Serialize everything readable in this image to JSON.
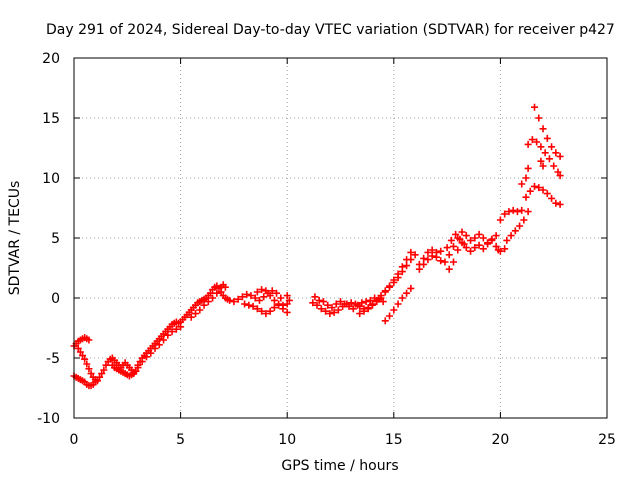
{
  "chart_data": {
    "type": "scatter",
    "title": "Day 291 of 2024, Sidereal Day-to-day VTEC variation (SDTVAR) for receiver p427",
    "xlabel": "GPS time / hours",
    "ylabel": "SDTVAR / TECUs",
    "xlim": [
      0,
      25
    ],
    "ylim": [
      -10,
      20
    ],
    "xticks": [
      0,
      5,
      10,
      15,
      20,
      25
    ],
    "yticks": [
      -10,
      -5,
      0,
      5,
      10,
      15,
      20
    ],
    "grid": true,
    "marker": "+",
    "color": "#ff0000",
    "series": [
      {
        "name": "SDTVAR",
        "points": [
          [
            0.0,
            -4.0
          ],
          [
            0.1,
            -3.8
          ],
          [
            0.2,
            -3.6
          ],
          [
            0.3,
            -3.5
          ],
          [
            0.4,
            -3.4
          ],
          [
            0.5,
            -3.3
          ],
          [
            0.6,
            -3.4
          ],
          [
            0.7,
            -3.5
          ],
          [
            0.0,
            -6.5
          ],
          [
            0.1,
            -6.6
          ],
          [
            0.2,
            -6.7
          ],
          [
            0.3,
            -6.8
          ],
          [
            0.4,
            -6.9
          ],
          [
            0.5,
            -7.0
          ],
          [
            0.6,
            -7.2
          ],
          [
            0.7,
            -7.3
          ],
          [
            0.8,
            -7.3
          ],
          [
            0.9,
            -7.2
          ],
          [
            1.0,
            -7.0
          ],
          [
            0.2,
            -4.2
          ],
          [
            0.3,
            -4.5
          ],
          [
            0.4,
            -4.8
          ],
          [
            0.5,
            -5.1
          ],
          [
            0.6,
            -5.5
          ],
          [
            0.7,
            -5.9
          ],
          [
            0.8,
            -6.3
          ],
          [
            0.9,
            -6.6
          ],
          [
            1.0,
            -6.8
          ],
          [
            1.1,
            -6.9
          ],
          [
            1.2,
            -6.6
          ],
          [
            1.3,
            -6.3
          ],
          [
            1.4,
            -6.0
          ],
          [
            1.5,
            -5.6
          ],
          [
            1.6,
            -5.3
          ],
          [
            1.7,
            -5.1
          ],
          [
            1.8,
            -5.0
          ],
          [
            1.9,
            -5.2
          ],
          [
            2.0,
            -5.4
          ],
          [
            2.1,
            -5.6
          ],
          [
            2.2,
            -5.8
          ],
          [
            2.3,
            -5.6
          ],
          [
            2.4,
            -5.4
          ],
          [
            2.5,
            -5.6
          ],
          [
            2.6,
            -5.8
          ],
          [
            2.7,
            -6.0
          ],
          [
            2.8,
            -6.2
          ],
          [
            2.9,
            -6.1
          ],
          [
            3.0,
            -5.8
          ],
          [
            1.8,
            -5.6
          ],
          [
            1.9,
            -5.8
          ],
          [
            2.0,
            -5.9
          ],
          [
            2.1,
            -6.0
          ],
          [
            2.2,
            -6.1
          ],
          [
            2.3,
            -6.2
          ],
          [
            2.4,
            -6.3
          ],
          [
            2.5,
            -6.4
          ],
          [
            2.6,
            -6.5
          ],
          [
            2.7,
            -6.4
          ],
          [
            2.8,
            -6.3
          ],
          [
            2.9,
            -6.1
          ],
          [
            3.0,
            -5.6
          ],
          [
            3.1,
            -5.3
          ],
          [
            3.2,
            -5.0
          ],
          [
            3.3,
            -4.8
          ],
          [
            3.4,
            -4.6
          ],
          [
            3.5,
            -4.4
          ],
          [
            3.6,
            -4.2
          ],
          [
            3.7,
            -4.0
          ],
          [
            3.8,
            -3.8
          ],
          [
            3.9,
            -3.6
          ],
          [
            4.0,
            -3.4
          ],
          [
            4.1,
            -3.2
          ],
          [
            4.2,
            -3.0
          ],
          [
            4.3,
            -2.8
          ],
          [
            4.4,
            -2.6
          ],
          [
            4.5,
            -2.4
          ],
          [
            4.6,
            -2.2
          ],
          [
            4.7,
            -2.1
          ],
          [
            4.8,
            -2.0
          ],
          [
            4.9,
            -2.1
          ],
          [
            5.0,
            -2.0
          ],
          [
            3.2,
            -5.3
          ],
          [
            3.4,
            -4.9
          ],
          [
            3.6,
            -4.6
          ],
          [
            3.8,
            -4.2
          ],
          [
            4.0,
            -3.9
          ],
          [
            4.2,
            -3.5
          ],
          [
            4.4,
            -3.1
          ],
          [
            4.6,
            -2.8
          ],
          [
            4.8,
            -2.6
          ],
          [
            5.0,
            -2.4
          ],
          [
            5.1,
            -1.8
          ],
          [
            5.2,
            -1.6
          ],
          [
            5.3,
            -1.4
          ],
          [
            5.4,
            -1.2
          ],
          [
            5.5,
            -1.0
          ],
          [
            5.6,
            -0.8
          ],
          [
            5.7,
            -0.6
          ],
          [
            5.8,
            -0.4
          ],
          [
            5.9,
            -0.3
          ],
          [
            6.0,
            -0.2
          ],
          [
            6.1,
            -0.1
          ],
          [
            6.2,
            0.0
          ],
          [
            6.3,
            0.2
          ],
          [
            6.4,
            0.4
          ],
          [
            6.5,
            0.7
          ],
          [
            6.6,
            0.9
          ],
          [
            6.7,
            1.0
          ],
          [
            6.8,
            0.8
          ],
          [
            6.9,
            0.5
          ],
          [
            7.0,
            0.2
          ],
          [
            7.1,
            0.0
          ],
          [
            7.2,
            -0.1
          ],
          [
            5.5,
            -1.6
          ],
          [
            5.7,
            -1.3
          ],
          [
            5.9,
            -1.0
          ],
          [
            6.1,
            -0.6
          ],
          [
            6.3,
            -0.3
          ],
          [
            6.5,
            0.0
          ],
          [
            6.7,
            0.4
          ],
          [
            6.9,
            0.9
          ],
          [
            7.0,
            1.1
          ],
          [
            7.1,
            0.9
          ],
          [
            7.3,
            -0.2
          ],
          [
            7.5,
            -0.3
          ],
          [
            7.7,
            -0.1
          ],
          [
            7.9,
            0.1
          ],
          [
            8.1,
            0.3
          ],
          [
            8.3,
            0.2
          ],
          [
            8.5,
            0.0
          ],
          [
            8.7,
            -0.2
          ],
          [
            8.9,
            0.1
          ],
          [
            9.1,
            0.4
          ],
          [
            9.3,
            0.6
          ],
          [
            9.5,
            0.4
          ],
          [
            9.7,
            0.0
          ],
          [
            8.0,
            -0.5
          ],
          [
            8.2,
            -0.6
          ],
          [
            8.4,
            -0.7
          ],
          [
            8.6,
            -0.9
          ],
          [
            8.8,
            -1.1
          ],
          [
            9.0,
            -1.3
          ],
          [
            9.2,
            -1.1
          ],
          [
            9.4,
            -0.8
          ],
          [
            9.6,
            -0.6
          ],
          [
            9.8,
            -0.9
          ],
          [
            10.0,
            -1.2
          ],
          [
            8.6,
            0.5
          ],
          [
            8.8,
            0.7
          ],
          [
            9.0,
            0.6
          ],
          [
            9.2,
            0.2
          ],
          [
            9.4,
            -0.2
          ],
          [
            9.6,
            -0.5
          ],
          [
            9.8,
            -0.6
          ],
          [
            10.0,
            -0.5
          ],
          [
            10.1,
            -0.2
          ],
          [
            10.0,
            0.2
          ],
          [
            11.2,
            -0.4
          ],
          [
            11.4,
            -0.6
          ],
          [
            11.6,
            -0.9
          ],
          [
            11.8,
            -1.1
          ],
          [
            12.0,
            -1.3
          ],
          [
            12.2,
            -1.2
          ],
          [
            12.4,
            -1.0
          ],
          [
            12.6,
            -0.7
          ],
          [
            12.8,
            -0.5
          ],
          [
            13.0,
            -0.4
          ],
          [
            13.2,
            -0.5
          ],
          [
            13.4,
            -0.7
          ],
          [
            13.6,
            -0.9
          ],
          [
            11.3,
            0.1
          ],
          [
            11.5,
            -0.2
          ],
          [
            11.7,
            -0.3
          ],
          [
            11.9,
            -0.6
          ],
          [
            12.1,
            -0.8
          ],
          [
            12.3,
            -0.5
          ],
          [
            12.5,
            -0.3
          ],
          [
            12.7,
            -0.5
          ],
          [
            12.9,
            -0.7
          ],
          [
            13.1,
            -0.9
          ],
          [
            13.3,
            -0.6
          ],
          [
            13.5,
            -0.4
          ],
          [
            13.7,
            -0.3
          ],
          [
            13.9,
            -0.2
          ],
          [
            14.1,
            0.0
          ],
          [
            14.3,
            -0.1
          ],
          [
            14.5,
            -0.3
          ],
          [
            13.4,
            -1.3
          ],
          [
            13.6,
            -1.1
          ],
          [
            13.8,
            -0.8
          ],
          [
            14.0,
            -0.5
          ],
          [
            14.2,
            -0.2
          ],
          [
            14.4,
            0.2
          ],
          [
            14.6,
            0.6
          ],
          [
            14.8,
            0.9
          ],
          [
            15.0,
            1.3
          ],
          [
            15.2,
            1.7
          ],
          [
            15.4,
            2.2
          ],
          [
            15.6,
            2.7
          ],
          [
            15.8,
            3.2
          ],
          [
            16.0,
            3.6
          ],
          [
            13.8,
            -0.9
          ],
          [
            14.0,
            -0.6
          ],
          [
            14.2,
            -0.3
          ],
          [
            14.4,
            0.0
          ],
          [
            14.6,
            0.5
          ],
          [
            14.8,
            1.0
          ],
          [
            15.0,
            1.5
          ],
          [
            15.2,
            2.0
          ],
          [
            15.4,
            2.6
          ],
          [
            15.6,
            3.2
          ],
          [
            15.8,
            3.8
          ],
          [
            14.6,
            -1.9
          ],
          [
            14.8,
            -1.5
          ],
          [
            15.0,
            -1.0
          ],
          [
            15.2,
            -0.5
          ],
          [
            15.4,
            0.0
          ],
          [
            15.6,
            0.4
          ],
          [
            15.8,
            0.8
          ],
          [
            16.2,
            2.4
          ],
          [
            16.4,
            2.8
          ],
          [
            16.6,
            3.2
          ],
          [
            16.8,
            3.5
          ],
          [
            17.0,
            3.8
          ],
          [
            17.2,
            3.9
          ],
          [
            16.2,
            2.8
          ],
          [
            16.4,
            3.3
          ],
          [
            16.6,
            3.8
          ],
          [
            16.8,
            4.0
          ],
          [
            17.0,
            3.4
          ],
          [
            17.2,
            3.1
          ],
          [
            17.4,
            3.0
          ],
          [
            17.6,
            3.6
          ],
          [
            17.8,
            4.3
          ],
          [
            18.0,
            5.0
          ],
          [
            18.2,
            5.5
          ],
          [
            18.4,
            5.2
          ],
          [
            18.6,
            4.8
          ],
          [
            18.8,
            5.0
          ],
          [
            19.0,
            5.3
          ],
          [
            19.2,
            5.0
          ],
          [
            19.4,
            4.6
          ],
          [
            19.6,
            4.9
          ],
          [
            19.8,
            5.2
          ],
          [
            17.6,
            2.4
          ],
          [
            17.8,
            3.0
          ],
          [
            18.0,
            4.0
          ],
          [
            18.2,
            4.6
          ],
          [
            18.4,
            4.2
          ],
          [
            18.6,
            3.9
          ],
          [
            18.8,
            4.2
          ],
          [
            19.0,
            4.4
          ],
          [
            19.2,
            4.1
          ],
          [
            19.4,
            4.5
          ],
          [
            19.6,
            4.8
          ],
          [
            19.8,
            4.3
          ],
          [
            17.5,
            4.2
          ],
          [
            17.7,
            4.8
          ],
          [
            17.9,
            5.3
          ],
          [
            18.1,
            4.9
          ],
          [
            18.3,
            4.5
          ],
          [
            19.9,
            4.0
          ],
          [
            20.0,
            3.9
          ],
          [
            20.2,
            4.1
          ],
          [
            20.0,
            6.5
          ],
          [
            20.2,
            7.0
          ],
          [
            20.4,
            7.2
          ],
          [
            20.6,
            7.3
          ],
          [
            20.8,
            7.2
          ],
          [
            21.0,
            7.3
          ],
          [
            20.3,
            4.8
          ],
          [
            20.5,
            5.2
          ],
          [
            20.7,
            5.6
          ],
          [
            20.9,
            6.0
          ],
          [
            21.1,
            6.5
          ],
          [
            21.3,
            7.2
          ],
          [
            21.0,
            9.5
          ],
          [
            21.2,
            10.0
          ],
          [
            21.3,
            10.8
          ],
          [
            21.2,
            8.4
          ],
          [
            21.4,
            8.9
          ],
          [
            21.6,
            9.3
          ],
          [
            21.8,
            9.2
          ],
          [
            22.0,
            9.0
          ],
          [
            22.2,
            8.7
          ],
          [
            22.4,
            8.3
          ],
          [
            22.6,
            7.9
          ],
          [
            22.8,
            7.8
          ],
          [
            21.3,
            12.8
          ],
          [
            21.5,
            13.2
          ],
          [
            21.7,
            13.0
          ],
          [
            21.9,
            12.6
          ],
          [
            22.1,
            12.1
          ],
          [
            22.3,
            11.6
          ],
          [
            22.5,
            11.0
          ],
          [
            22.7,
            10.5
          ],
          [
            22.8,
            10.2
          ],
          [
            21.6,
            15.9
          ],
          [
            21.8,
            15.0
          ],
          [
            22.0,
            14.1
          ],
          [
            22.2,
            13.3
          ],
          [
            22.4,
            12.6
          ],
          [
            22.6,
            12.1
          ],
          [
            22.8,
            11.8
          ],
          [
            21.9,
            11.4
          ],
          [
            22.0,
            11.0
          ]
        ]
      }
    ]
  }
}
